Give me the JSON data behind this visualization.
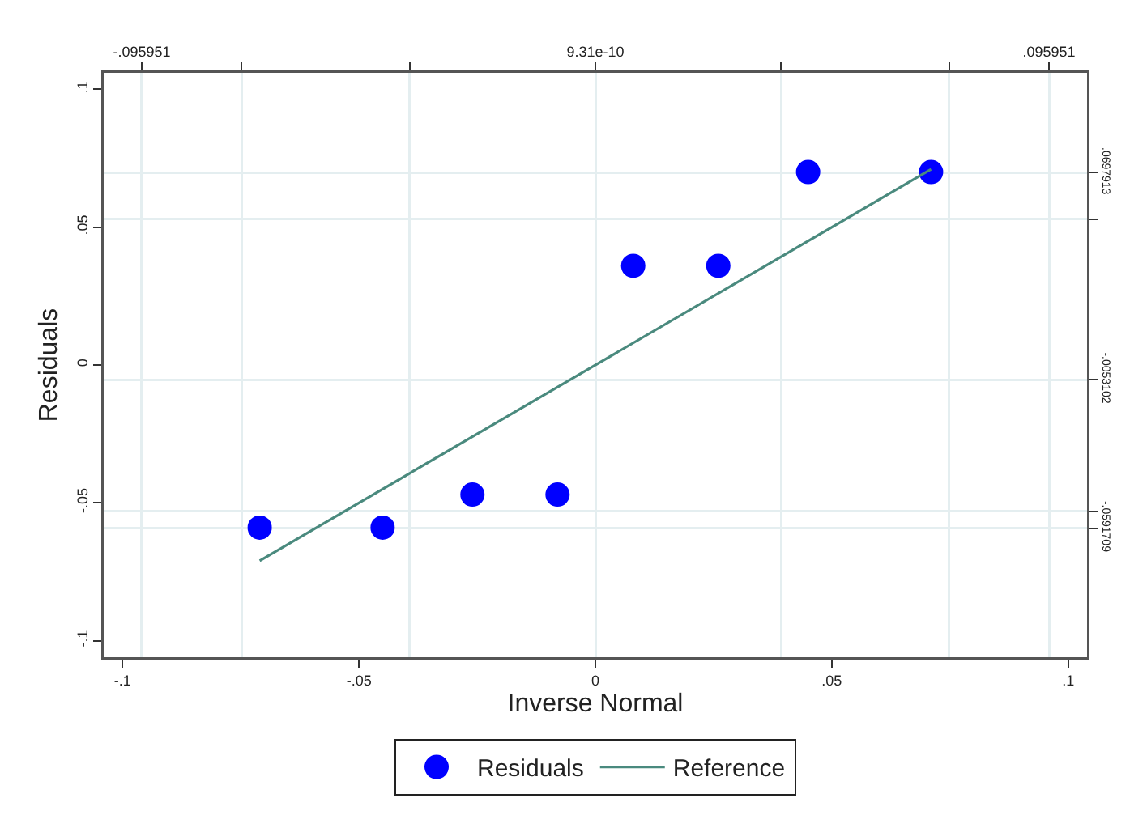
{
  "chart_data": {
    "type": "scatter",
    "xlabel": "Inverse Normal",
    "ylabel": "Residuals",
    "xlim": [
      -0.104,
      0.104
    ],
    "xticks": [
      {
        "value": -0.1,
        "label": "-.1"
      },
      {
        "value": -0.05,
        "label": "-.05"
      },
      {
        "value": 0,
        "label": "0"
      },
      {
        "value": 0.05,
        "label": ".05"
      },
      {
        "value": 0.1,
        "label": ".1"
      }
    ],
    "ylim": [
      -0.106,
      0.106
    ],
    "yticks": [
      {
        "value": -0.1,
        "label": "-.1"
      },
      {
        "value": -0.05,
        "label": "-.05"
      },
      {
        "value": 0,
        "label": "0"
      },
      {
        "value": 0.05,
        "label": ".05"
      },
      {
        "value": 0.1,
        "label": ".1"
      }
    ],
    "x2lim": [
      -0.104,
      0.104
    ],
    "x2ticks": [
      {
        "value": -0.095951,
        "label": "-.095951"
      },
      {
        "value": -0.0748,
        "label": null
      },
      {
        "value": -0.0393,
        "label": null
      },
      {
        "value": 9.31e-10,
        "label": "9.31e-10"
      },
      {
        "value": 0.0393,
        "label": null
      },
      {
        "value": 0.0748,
        "label": null
      },
      {
        "value": 0.095951,
        "label": ".095951"
      }
    ],
    "y2lim": [
      -0.106,
      0.106
    ],
    "y2ticks": [
      {
        "value": -0.0591709,
        "label": "-.0591709"
      },
      {
        "value": -0.053,
        "label": null
      },
      {
        "value": -0.0053102,
        "label": "-.0053102"
      },
      {
        "value": 0.053,
        "label": null
      },
      {
        "value": 0.0697913,
        "label": ".0697913"
      }
    ],
    "grid": true,
    "legend": "bottom",
    "series": [
      {
        "name": "Residuals",
        "marker": "circle",
        "color": "#0000ff",
        "x": [
          -0.071,
          -0.045,
          -0.026,
          -0.008,
          0.008,
          0.026,
          0.045,
          0.071
        ],
        "values": [
          -0.059,
          -0.059,
          -0.047,
          -0.047,
          0.036,
          0.036,
          0.07,
          0.07
        ]
      },
      {
        "name": "Reference",
        "type": "line",
        "color": "#4a8a7e",
        "line_style": "solid",
        "x": [
          -0.071,
          0.071
        ],
        "values": [
          -0.071,
          0.071
        ]
      }
    ]
  }
}
